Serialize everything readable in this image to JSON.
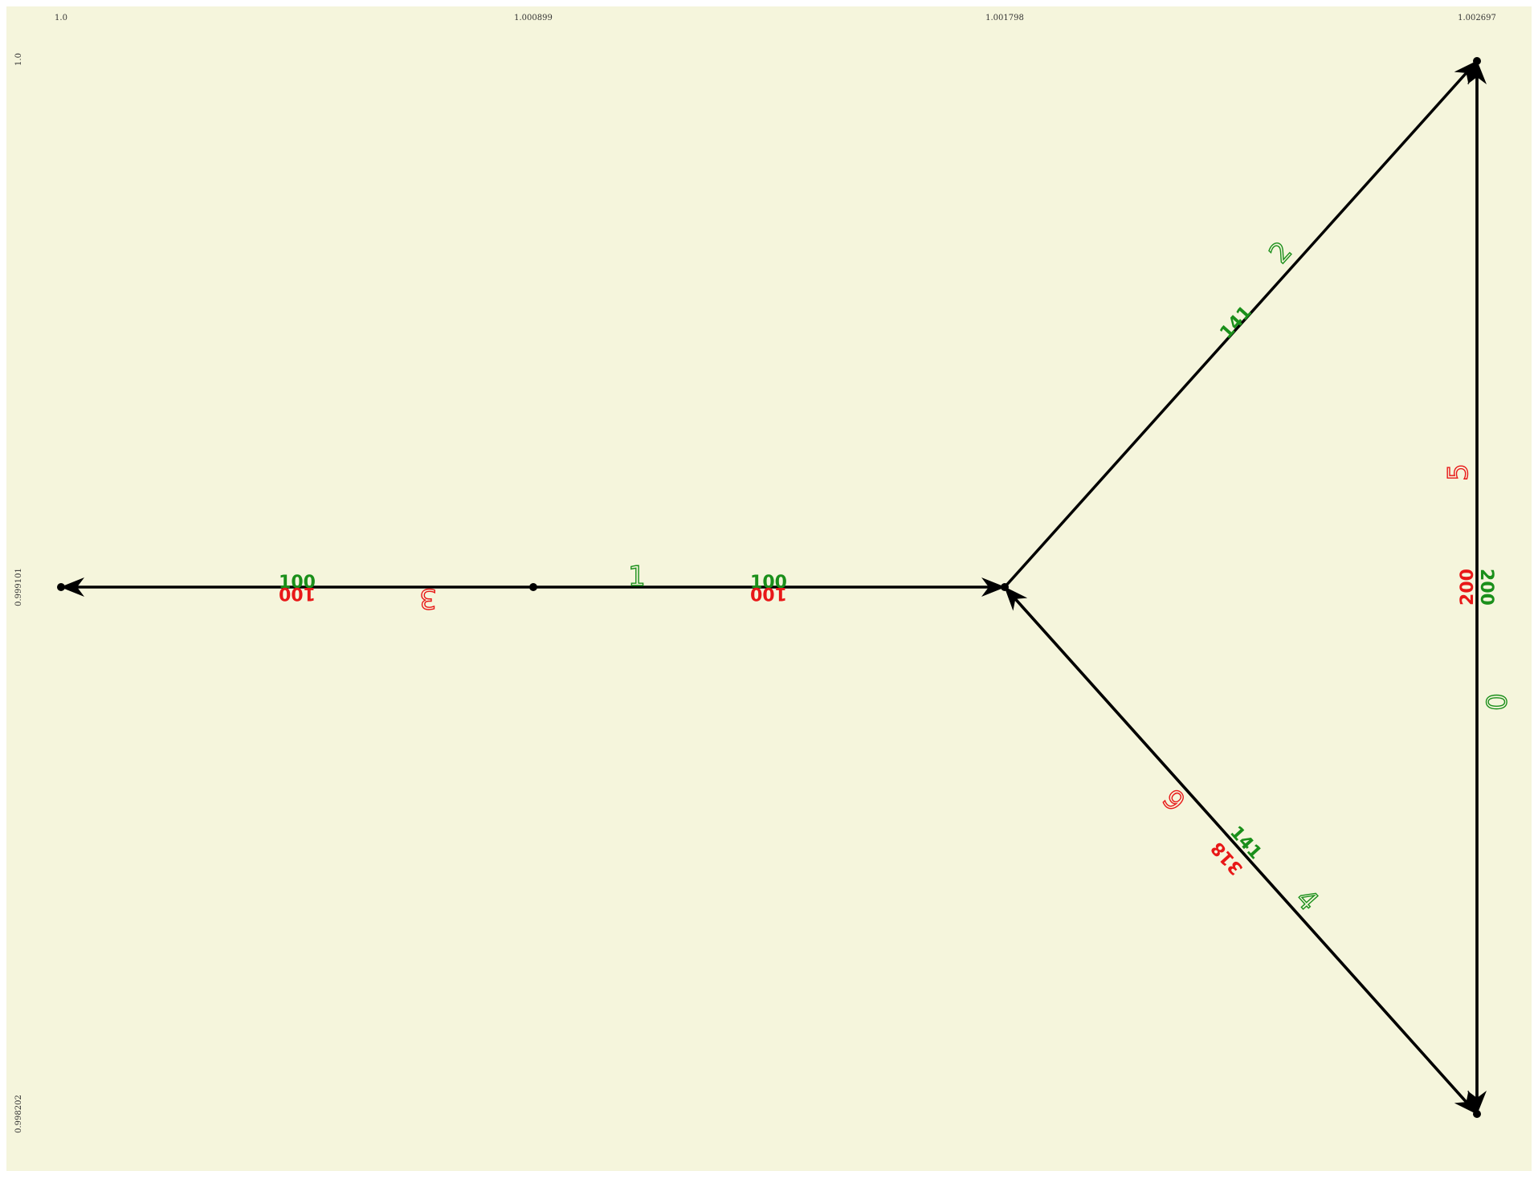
{
  "colors": {
    "background": "#f5f5dc",
    "edge": "#000000",
    "green": "#1a8f1a",
    "red": "#e81818"
  },
  "axes": {
    "x_ticks": [
      "1.0",
      "1.000899",
      "1.001798",
      "1.002697"
    ],
    "y_ticks": [
      "1.0",
      "0.999101",
      "0.998202"
    ]
  },
  "nodes": [
    {
      "id": "n-left",
      "x": 1.0,
      "y": 0.999101
    },
    {
      "id": "n-mid",
      "x": 1.000899,
      "y": 0.999101
    },
    {
      "id": "n-center",
      "x": 1.001798,
      "y": 0.999101
    },
    {
      "id": "n-top-right",
      "x": 1.002697,
      "y": 1.0
    },
    {
      "id": "n-bottom-right",
      "x": 1.002697,
      "y": 0.998202
    }
  ],
  "edges": [
    {
      "id": "0",
      "from": "n-top-right",
      "to": "n-bottom-right",
      "label": "0",
      "weight": "200"
    },
    {
      "id": "5",
      "from": "n-bottom-right",
      "to": "n-top-right",
      "label": "5",
      "weight": "200"
    },
    {
      "id": "1",
      "from": "n-mid",
      "to": "n-center",
      "label": "1",
      "weight": "100"
    },
    {
      "id": "3",
      "from": "n-mid",
      "to": "n-left",
      "label": "3",
      "weight": "100"
    },
    {
      "id": "2",
      "from": "n-center",
      "to": "n-top-right",
      "label": "2",
      "weight": "141"
    },
    {
      "id": "4",
      "from": "n-center",
      "to": "n-bottom-right",
      "label": "4",
      "weight": "141"
    },
    {
      "id": "6",
      "from": "n-bottom-right",
      "to": "n-center",
      "label": "6",
      "weight": "318"
    }
  ],
  "labels": {
    "green_big": [
      "1",
      "2",
      "4",
      "0"
    ],
    "red_big": [
      "3",
      "5",
      "6"
    ],
    "green_small": [
      "100",
      "100",
      "141",
      "141",
      "200"
    ],
    "red_small": [
      "100",
      "100",
      "200",
      "318"
    ]
  }
}
